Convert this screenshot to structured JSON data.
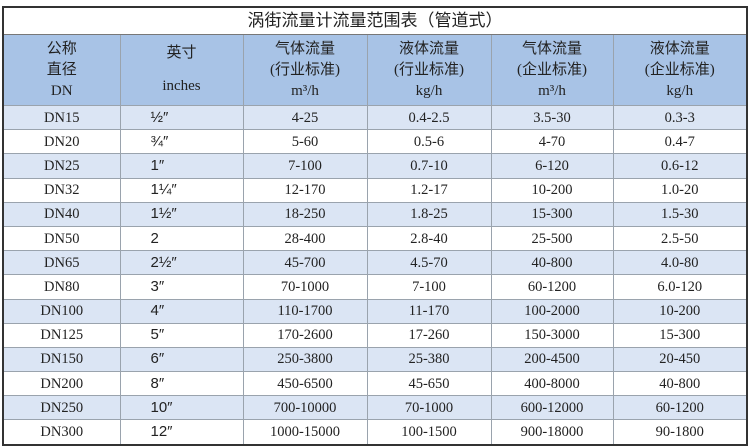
{
  "title": "涡街流量计流量范围表（管道式）",
  "headers": [
    [
      "公称",
      "直径",
      "DN"
    ],
    [
      "英寸",
      "inches"
    ],
    [
      "气体流量",
      "(行业标准)",
      "m³/h"
    ],
    [
      "液体流量",
      "(行业标准)",
      "kg/h"
    ],
    [
      "气体流量",
      "(企业标准)",
      "m³/h"
    ],
    [
      "液体流量",
      "(企业标准)",
      "kg/h"
    ]
  ],
  "colors": {
    "header_bg": "#a8c3e6",
    "alt_row_bg": "#dbe5f4"
  },
  "rows": [
    [
      "DN15",
      "½″",
      "4-25",
      "0.4-2.5",
      "3.5-30",
      "0.3-3"
    ],
    [
      "DN20",
      "¾″",
      "5-60",
      "0.5-6",
      "4-70",
      "0.4-7"
    ],
    [
      "DN25",
      "1″",
      "7-100",
      "0.7-10",
      "6-120",
      "0.6-12"
    ],
    [
      "DN32",
      "1¼″",
      "12-170",
      "1.2-17",
      "10-200",
      "1.0-20"
    ],
    [
      "DN40",
      "1½″",
      "18-250",
      "1.8-25",
      "15-300",
      "1.5-30"
    ],
    [
      "DN50",
      "2",
      "28-400",
      "2.8-40",
      "25-500",
      "2.5-50"
    ],
    [
      "DN65",
      "2½″",
      "45-700",
      "4.5-70",
      "40-800",
      "4.0-80"
    ],
    [
      "DN80",
      "3″",
      "70-1000",
      "7-100",
      "60-1200",
      "6.0-120"
    ],
    [
      "DN100",
      "4″",
      "110-1700",
      "11-170",
      "100-2000",
      "10-200"
    ],
    [
      "DN125",
      "5″",
      "170-2600",
      "17-260",
      "150-3000",
      "15-300"
    ],
    [
      "DN150",
      "6″",
      "250-3800",
      "25-380",
      "200-4500",
      "20-450"
    ],
    [
      "DN200",
      "8″",
      "450-6500",
      "45-650",
      "400-8000",
      "40-800"
    ],
    [
      "DN250",
      "10″",
      "700-10000",
      "70-1000",
      "600-12000",
      "60-1200"
    ],
    [
      "DN300",
      "12″",
      "1000-15000",
      "100-1500",
      "900-18000",
      "90-1800"
    ]
  ]
}
